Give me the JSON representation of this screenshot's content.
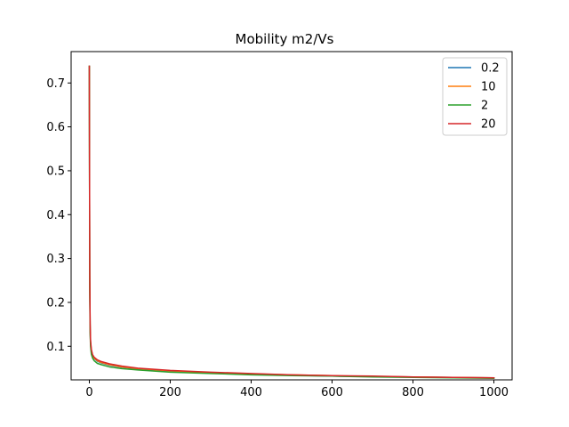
{
  "chart_data": {
    "type": "line",
    "title": "Mobility m2/Vs",
    "xlabel": "",
    "ylabel": "",
    "xlim": [
      -45,
      1045
    ],
    "ylim": [
      0.0235,
      0.7715
    ],
    "xticks": [
      0,
      200,
      400,
      600,
      800,
      1000
    ],
    "yticks": [
      0.1,
      0.2,
      0.3,
      0.4,
      0.5,
      0.6,
      0.7
    ],
    "grid": false,
    "legend_position": "top-right",
    "series": [
      {
        "name": "0.2",
        "color": "#1f77b4",
        "x": [
          0,
          1,
          2,
          3,
          5,
          8,
          12,
          20,
          30,
          50,
          80,
          120,
          200,
          300,
          400,
          500,
          600,
          700,
          800,
          900,
          1000
        ],
        "y": [
          0.738,
          0.25,
          0.14,
          0.108,
          0.088,
          0.078,
          0.072,
          0.066,
          0.062,
          0.057,
          0.052,
          0.048,
          0.043,
          0.039,
          0.036,
          0.034,
          0.032,
          0.031,
          0.03,
          0.029,
          0.028
        ]
      },
      {
        "name": "10",
        "color": "#ff7f0e",
        "x": [
          0,
          1,
          2,
          3,
          5,
          8,
          12,
          20,
          30,
          50,
          80,
          120,
          200,
          300,
          400,
          500,
          600,
          700,
          800,
          900,
          1000
        ],
        "y": [
          0.738,
          0.26,
          0.145,
          0.11,
          0.09,
          0.079,
          0.073,
          0.067,
          0.063,
          0.058,
          0.053,
          0.049,
          0.044,
          0.04,
          0.037,
          0.035,
          0.033,
          0.031,
          0.03,
          0.029,
          0.028
        ]
      },
      {
        "name": "2",
        "color": "#2ca02c",
        "x": [
          0,
          1,
          2,
          3,
          5,
          8,
          12,
          20,
          30,
          50,
          80,
          120,
          200,
          300,
          400,
          500,
          600,
          700,
          800,
          900,
          1000
        ],
        "y": [
          0.738,
          0.23,
          0.13,
          0.1,
          0.082,
          0.073,
          0.067,
          0.061,
          0.058,
          0.053,
          0.049,
          0.046,
          0.041,
          0.038,
          0.035,
          0.033,
          0.032,
          0.03,
          0.029,
          0.028,
          0.027
        ]
      },
      {
        "name": "20",
        "color": "#d62728",
        "x": [
          0,
          1,
          2,
          3,
          5,
          8,
          12,
          20,
          30,
          50,
          80,
          120,
          200,
          300,
          400,
          500,
          600,
          700,
          800,
          900,
          1000
        ],
        "y": [
          0.738,
          0.27,
          0.15,
          0.114,
          0.093,
          0.081,
          0.075,
          0.069,
          0.065,
          0.06,
          0.055,
          0.05,
          0.045,
          0.041,
          0.038,
          0.035,
          0.033,
          0.032,
          0.03,
          0.029,
          0.028
        ]
      }
    ]
  }
}
